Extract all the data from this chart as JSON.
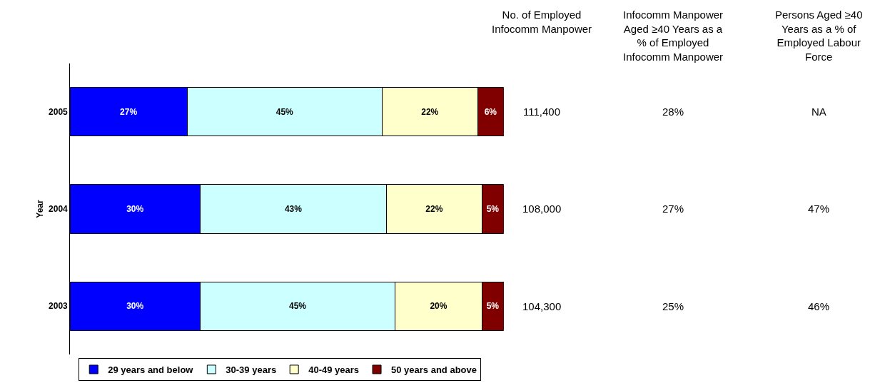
{
  "chart_data": {
    "type": "bar",
    "orientation": "horizontal",
    "stacked": true,
    "ylabel": "Year",
    "categories": [
      "2005",
      "2004",
      "2003"
    ],
    "xlim": [
      0,
      100
    ],
    "tick_labels": "y",
    "legend": "bottom",
    "series": [
      {
        "name": "29 years and below",
        "color": "#0000ff",
        "values": [
          27,
          30,
          30
        ],
        "value_labels": [
          "27%",
          "30%",
          "30%"
        ]
      },
      {
        "name": "30-39 years",
        "color": "#ccffff",
        "values": [
          45,
          43,
          45
        ],
        "value_labels": [
          "45%",
          "43%",
          "45%"
        ]
      },
      {
        "name": "40-49 years",
        "color": "#ffffcc",
        "values": [
          22,
          22,
          20
        ],
        "value_labels": [
          "22%",
          "22%",
          "20%"
        ]
      },
      {
        "name": "50 years and above",
        "color": "#800000",
        "values": [
          6,
          5,
          5
        ],
        "value_labels": [
          "6%",
          "5%",
          "5%"
        ]
      }
    ],
    "annotations": [
      "No. of Employed Infocomm Manpower",
      "Infocomm Manpower Aged ≥40 Years as a % of Employed Infocomm Manpower",
      "Persons Aged ≥40 Years as a % of Employed Labour Force",
      "111,400",
      "28%",
      "NA",
      "108,000",
      "27%",
      "47%",
      "104,300",
      "25%",
      "46%"
    ]
  }
}
